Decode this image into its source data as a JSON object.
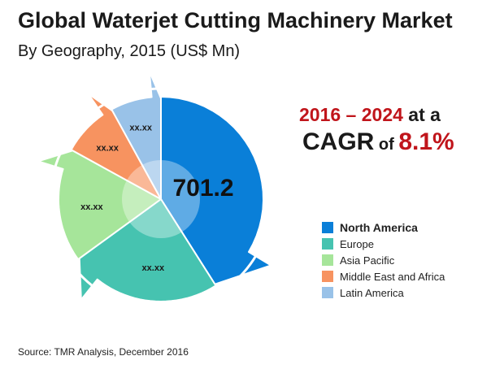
{
  "header": {
    "title": "Global Waterjet Cutting Machinery Market",
    "subtitle": "By Geography, 2015 (US$ Mn)"
  },
  "cagr": {
    "years": "2016 – 2024",
    "at_a": " at a",
    "cagr_word": "CAGR",
    "of_word": " of ",
    "rate": "8.1%"
  },
  "source": "Source: TMR Analysis, December 2016",
  "chart_data": {
    "type": "pie",
    "center_label": "701.2",
    "categories": [
      "North America",
      "Europe",
      "Asia Pacific",
      "Middle East and Africa",
      "Latin America"
    ],
    "values": [
      0.41,
      0.24,
      0.18,
      0.09,
      0.08
    ],
    "value_labels": [
      "",
      "xx.xx",
      "xx.xx",
      "xx.xx",
      "xx.xx"
    ],
    "colors": [
      "#0a7fd8",
      "#46c3b0",
      "#a6e59a",
      "#f79360",
      "#99c2e8"
    ],
    "legend_position": "right"
  }
}
